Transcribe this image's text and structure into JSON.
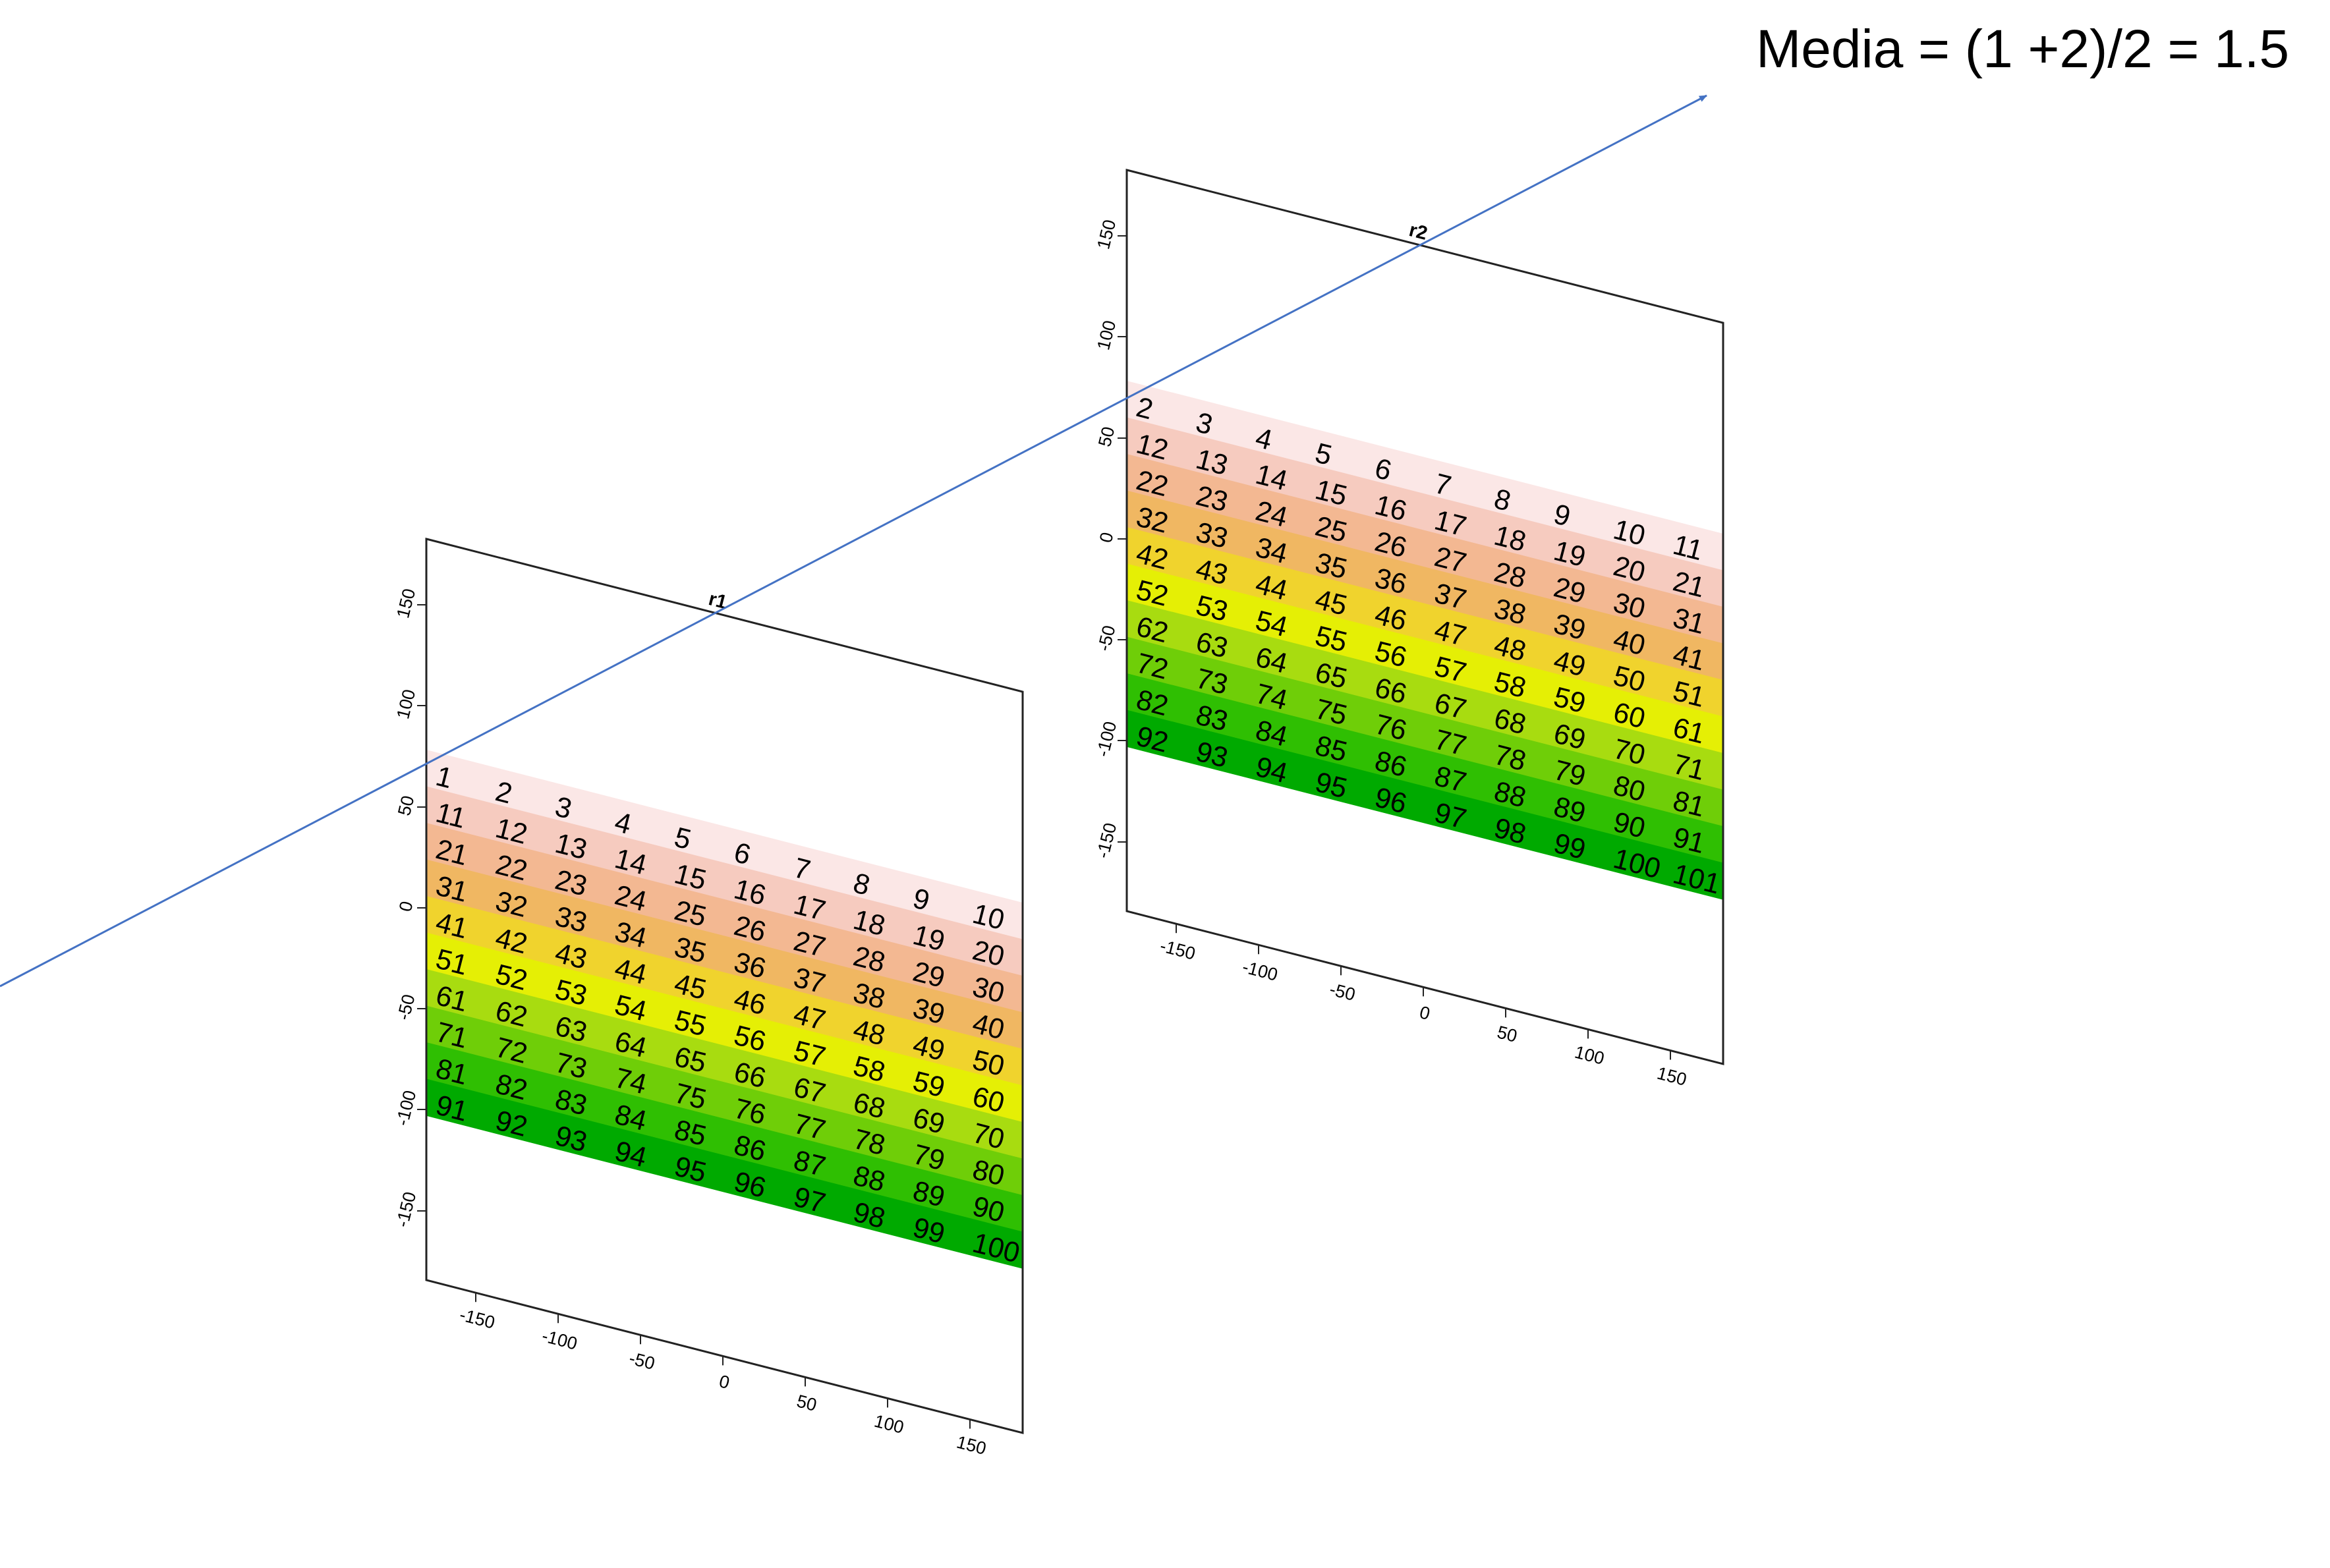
{
  "annotation": {
    "formula": "Media = (1 +2)/2  = 1.5"
  },
  "colors": {
    "arrow": "#4472c4",
    "rows": [
      "#fbe7e6",
      "#f6cbbf",
      "#f3b892",
      "#f0b762",
      "#f0d32d",
      "#e5ef05",
      "#a8dc10",
      "#6fce08",
      "#2fbf02",
      "#00aa00"
    ]
  },
  "panels": [
    {
      "title": "r1",
      "x_ticks": [
        "-150",
        "-100",
        "-50",
        "0",
        "50",
        "100",
        "150"
      ],
      "y_ticks": [
        "150",
        "100",
        "50",
        "0",
        "-50",
        "-100",
        "-150"
      ],
      "grid": [
        [
          "1",
          "2",
          "3",
          "4",
          "5",
          "6",
          "7",
          "8",
          "9",
          "10"
        ],
        [
          "11",
          "12",
          "13",
          "14",
          "15",
          "16",
          "17",
          "18",
          "19",
          "20"
        ],
        [
          "21",
          "22",
          "23",
          "24",
          "25",
          "26",
          "27",
          "28",
          "29",
          "30"
        ],
        [
          "31",
          "32",
          "33",
          "34",
          "35",
          "36",
          "37",
          "38",
          "39",
          "40"
        ],
        [
          "41",
          "42",
          "43",
          "44",
          "45",
          "46",
          "47",
          "48",
          "49",
          "50"
        ],
        [
          "51",
          "52",
          "53",
          "54",
          "55",
          "56",
          "57",
          "58",
          "59",
          "60"
        ],
        [
          "61",
          "62",
          "63",
          "64",
          "65",
          "66",
          "67",
          "68",
          "69",
          "70"
        ],
        [
          "71",
          "72",
          "73",
          "74",
          "75",
          "76",
          "77",
          "78",
          "79",
          "80"
        ],
        [
          "81",
          "82",
          "83",
          "84",
          "85",
          "86",
          "87",
          "88",
          "89",
          "90"
        ],
        [
          "91",
          "92",
          "93",
          "94",
          "95",
          "96",
          "97",
          "98",
          "99",
          "100"
        ]
      ]
    },
    {
      "title": "r2",
      "x_ticks": [
        "-150",
        "-100",
        "-50",
        "0",
        "50",
        "100",
        "150"
      ],
      "y_ticks": [
        "150",
        "100",
        "50",
        "0",
        "-50",
        "-100",
        "-150"
      ],
      "grid": [
        [
          "2",
          "3",
          "4",
          "5",
          "6",
          "7",
          "8",
          "9",
          "10",
          "11"
        ],
        [
          "12",
          "13",
          "14",
          "15",
          "16",
          "17",
          "18",
          "19",
          "20",
          "21"
        ],
        [
          "22",
          "23",
          "24",
          "25",
          "26",
          "27",
          "28",
          "29",
          "30",
          "31"
        ],
        [
          "32",
          "33",
          "34",
          "35",
          "36",
          "37",
          "38",
          "39",
          "40",
          "41"
        ],
        [
          "42",
          "43",
          "44",
          "45",
          "46",
          "47",
          "48",
          "49",
          "50",
          "51"
        ],
        [
          "52",
          "53",
          "54",
          "55",
          "56",
          "57",
          "58",
          "59",
          "60",
          "61"
        ],
        [
          "62",
          "63",
          "64",
          "65",
          "66",
          "67",
          "68",
          "69",
          "70",
          "71"
        ],
        [
          "72",
          "73",
          "74",
          "75",
          "76",
          "77",
          "78",
          "79",
          "80",
          "81"
        ],
        [
          "82",
          "83",
          "84",
          "85",
          "86",
          "87",
          "88",
          "89",
          "90",
          "91"
        ],
        [
          "92",
          "93",
          "94",
          "95",
          "96",
          "97",
          "98",
          "99",
          "100",
          "101"
        ]
      ]
    }
  ]
}
